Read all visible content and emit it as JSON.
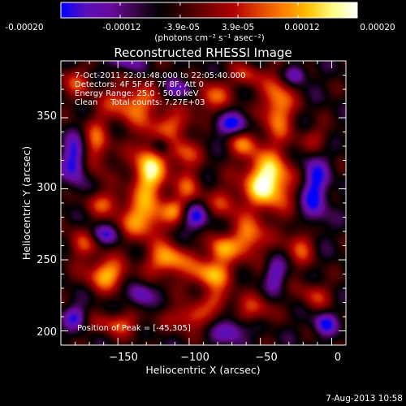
{
  "colorbar": {
    "tick_labels": [
      "-0.00020",
      "-0.00012",
      "-3.9e-05",
      "3.9e-05",
      "0.00012",
      "0.00020"
    ],
    "range": [
      -0.0002,
      0.0002
    ],
    "units": "(photons cm⁻² s⁻¹ asec⁻²)",
    "colormap": [
      "#0000ff",
      "#5a10b8",
      "#6a0aa0",
      "#3a0648",
      "#000000",
      "#3a0000",
      "#780000",
      "#b00000",
      "#e04000",
      "#ff8000",
      "#ffc000",
      "#ffff80",
      "#ffffff"
    ]
  },
  "title": "Reconstructed RHESSI Image",
  "info_lines": [
    "7-Oct-2011 22:01:48.000 to 22:05:40.000",
    "Detectors: 4F 5F 6F 7F 8F, Att 0",
    "Energy Range: 25.0 - 50.0 keV",
    "Clean     Total counts: 7.27E+03"
  ],
  "peak_text": "Position of Peak = [-45,305]",
  "footer_timestamp": "7-Aug-2013 10:58",
  "chart_data": {
    "type": "heatmap",
    "title": "Reconstructed RHESSI Image",
    "xlabel": "Heliocentric X (arcsec)",
    "ylabel": "Heliocentric Y (arcsec)",
    "xlim": [
      -190,
      10
    ],
    "ylim": [
      190,
      390
    ],
    "xticks": [
      -150,
      -100,
      -50,
      0
    ],
    "xtick_labels": [
      "−150",
      "−100",
      "−50",
      "0"
    ],
    "yticks": [
      200,
      250,
      300,
      350
    ],
    "ytick_labels": [
      "200",
      "250",
      "300",
      "350"
    ],
    "peak_position": [
      -45,
      305
    ],
    "blobs": [
      {
        "x": -128,
        "y": 312,
        "sx": 9,
        "sy": 16,
        "v": 1.0
      },
      {
        "x": -133,
        "y": 278,
        "sx": 12,
        "sy": 10,
        "v": 0.75
      },
      {
        "x": -104,
        "y": 325,
        "sx": 8,
        "sy": 8,
        "v": 0.55
      },
      {
        "x": -100,
        "y": 300,
        "sx": 7,
        "sy": 9,
        "v": 0.5
      },
      {
        "x": -45,
        "y": 305,
        "sx": 12,
        "sy": 14,
        "v": 1.2
      },
      {
        "x": -58,
        "y": 265,
        "sx": 9,
        "sy": 10,
        "v": 0.75
      },
      {
        "x": -75,
        "y": 290,
        "sx": 8,
        "sy": 8,
        "v": 0.45
      },
      {
        "x": -115,
        "y": 250,
        "sx": 10,
        "sy": 8,
        "v": 0.85
      },
      {
        "x": -85,
        "y": 240,
        "sx": 11,
        "sy": 8,
        "v": 0.8
      },
      {
        "x": -78,
        "y": 258,
        "sx": 7,
        "sy": 7,
        "v": 0.7
      },
      {
        "x": -158,
        "y": 240,
        "sx": 10,
        "sy": 8,
        "v": 0.85
      },
      {
        "x": -175,
        "y": 262,
        "sx": 8,
        "sy": 8,
        "v": 0.5
      },
      {
        "x": -150,
        "y": 205,
        "sx": 12,
        "sy": 6,
        "v": 0.55
      },
      {
        "x": -100,
        "y": 210,
        "sx": 10,
        "sy": 7,
        "v": 0.6
      },
      {
        "x": -55,
        "y": 215,
        "sx": 9,
        "sy": 7,
        "v": 0.5
      },
      {
        "x": -80,
        "y": 222,
        "sx": 7,
        "sy": 6,
        "v": 0.45
      },
      {
        "x": -38,
        "y": 358,
        "sx": 8,
        "sy": 16,
        "v": 0.8
      },
      {
        "x": -140,
        "y": 360,
        "sx": 14,
        "sy": 10,
        "v": 0.7
      },
      {
        "x": -85,
        "y": 365,
        "sx": 10,
        "sy": 8,
        "v": 0.6
      },
      {
        "x": -165,
        "y": 330,
        "sx": 7,
        "sy": 14,
        "v": 0.6
      },
      {
        "x": -22,
        "y": 260,
        "sx": 7,
        "sy": 10,
        "v": 0.55
      },
      {
        "x": -110,
        "y": 285,
        "sx": 6,
        "sy": 6,
        "v": 0.45
      },
      {
        "x": -160,
        "y": 290,
        "sx": 9,
        "sy": 6,
        "v": 0.5
      },
      {
        "x": -62,
        "y": 332,
        "sx": 8,
        "sy": 7,
        "v": 0.55
      },
      {
        "x": -12,
        "y": 225,
        "sx": 8,
        "sy": 7,
        "v": 0.45
      },
      {
        "x": -12,
        "y": 335,
        "sx": 8,
        "sy": 7,
        "v": 0.4
      },
      {
        "x": -112,
        "y": 345,
        "sx": 11,
        "sy": 7,
        "v": 0.5
      },
      {
        "x": -180,
        "y": 375,
        "sx": 8,
        "sy": 8,
        "v": 0.45
      },
      {
        "x": -60,
        "y": 380,
        "sx": 7,
        "sy": 6,
        "v": 0.5
      },
      {
        "x": -135,
        "y": 225,
        "sx": 6,
        "sy": 6,
        "v": -0.5
      },
      {
        "x": -95,
        "y": 280,
        "sx": 6,
        "sy": 7,
        "v": -0.6
      },
      {
        "x": -12,
        "y": 300,
        "sx": 7,
        "sy": 18,
        "v": -0.65
      },
      {
        "x": -180,
        "y": 320,
        "sx": 6,
        "sy": 12,
        "v": -0.7
      },
      {
        "x": -120,
        "y": 330,
        "sx": 5,
        "sy": 5,
        "v": -0.5
      },
      {
        "x": -70,
        "y": 345,
        "sx": 9,
        "sy": 6,
        "v": -0.6
      },
      {
        "x": -105,
        "y": 370,
        "sx": 8,
        "sy": 5,
        "v": -0.5
      },
      {
        "x": -160,
        "y": 268,
        "sx": 8,
        "sy": 5,
        "v": -0.5
      },
      {
        "x": -70,
        "y": 200,
        "sx": 8,
        "sy": 6,
        "v": -0.55
      },
      {
        "x": -5,
        "y": 205,
        "sx": 6,
        "sy": 6,
        "v": -0.55
      },
      {
        "x": -40,
        "y": 240,
        "sx": 5,
        "sy": 8,
        "v": -0.5
      },
      {
        "x": -25,
        "y": 380,
        "sx": 6,
        "sy": 5,
        "v": -0.5
      },
      {
        "x": -145,
        "y": 390,
        "sx": 8,
        "sy": 5,
        "v": -0.45
      },
      {
        "x": -180,
        "y": 210,
        "sx": 6,
        "sy": 6,
        "v": -0.5
      }
    ]
  }
}
